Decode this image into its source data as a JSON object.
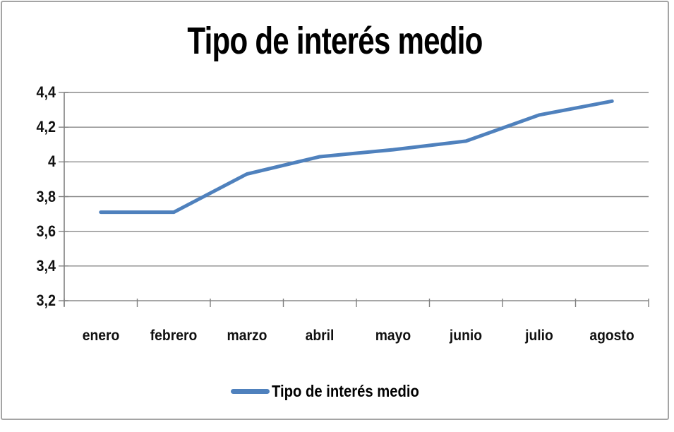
{
  "colors": {
    "line": "#4F81BD",
    "grid": "#8a8a8a",
    "axis": "#808080",
    "border": "#a4a4a4",
    "text": "#111111",
    "background": "#ffffff"
  },
  "legend": {
    "label": "Tipo de interés medio"
  },
  "chart_data": {
    "type": "line",
    "title": "Tipo de interés medio",
    "categories": [
      "enero",
      "febrero",
      "marzo",
      "abril",
      "mayo",
      "junio",
      "julio",
      "agosto"
    ],
    "series": [
      {
        "name": "Tipo de interés medio",
        "values": [
          3.71,
          3.71,
          3.93,
          4.03,
          4.07,
          4.12,
          4.27,
          4.35
        ]
      }
    ],
    "xlabel": "",
    "ylabel": "",
    "ylim": [
      3.2,
      4.4
    ],
    "ytick_interval": 0.2,
    "ytick_labels": [
      "3,2",
      "3,4",
      "3,6",
      "3,8",
      "4",
      "4,2",
      "4,4"
    ],
    "grid": true,
    "legend_position": "bottom"
  }
}
